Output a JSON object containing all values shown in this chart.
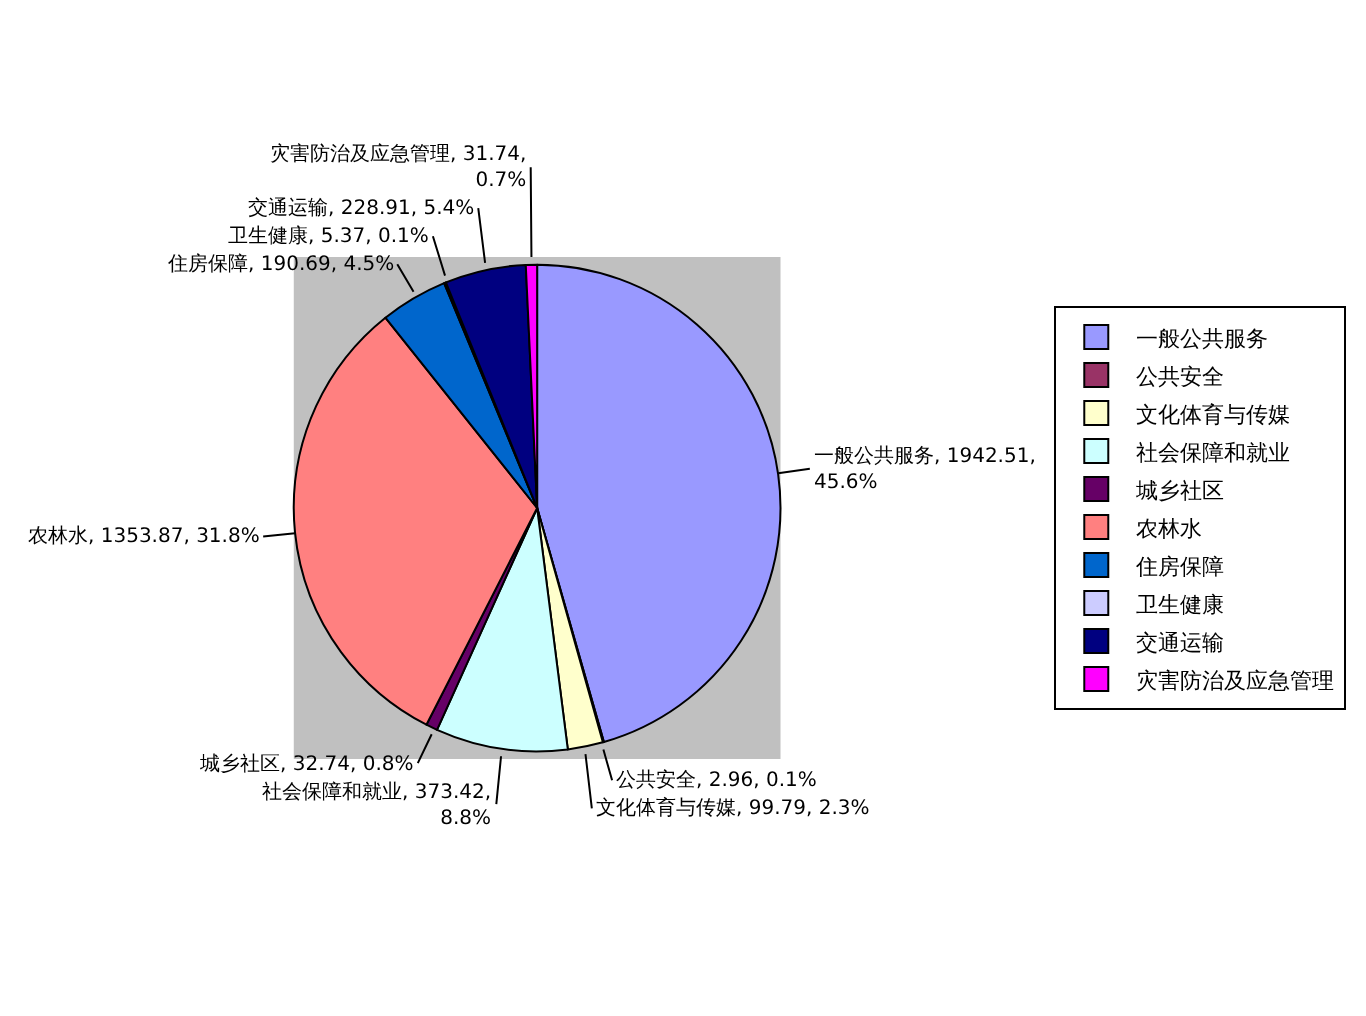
{
  "chart_data": {
    "type": "pie",
    "categories": [
      "一般公共服务",
      "公共安全",
      "文化体育与传媒",
      "社会保障和就业",
      "城乡社区",
      "农林水",
      "住房保障",
      "卫生健康",
      "交通运输",
      "灾害防治及应急管理"
    ],
    "values": [
      1942.51,
      2.96,
      99.79,
      373.42,
      32.74,
      1353.87,
      190.69,
      5.37,
      228.91,
      31.74
    ],
    "colors": [
      "#9999ff",
      "#993366",
      "#ffffcc",
      "#ccffff",
      "#660066",
      "#ff8080",
      "#0066cc",
      "#ccccff",
      "#000080",
      "#ff00ff"
    ],
    "value_labels": [
      "一般公共服务, 1942.51, 45.6%",
      "公共安全, 2.96, 0.1%",
      "文化体育与传媒, 99.79, 2.3%",
      "社会保障和就业, 373.42, 8.8%",
      "城乡社区, 32.74, 0.8%",
      "农林水, 1353.87, 31.8%",
      "住房保障, 190.69, 4.5%",
      "卫生健康, 5.37, 0.1%",
      "交通运输, 228.91, 5.4%",
      "灾害防治及应急管理, 31.74, 0.7%"
    ],
    "legend": "right"
  }
}
